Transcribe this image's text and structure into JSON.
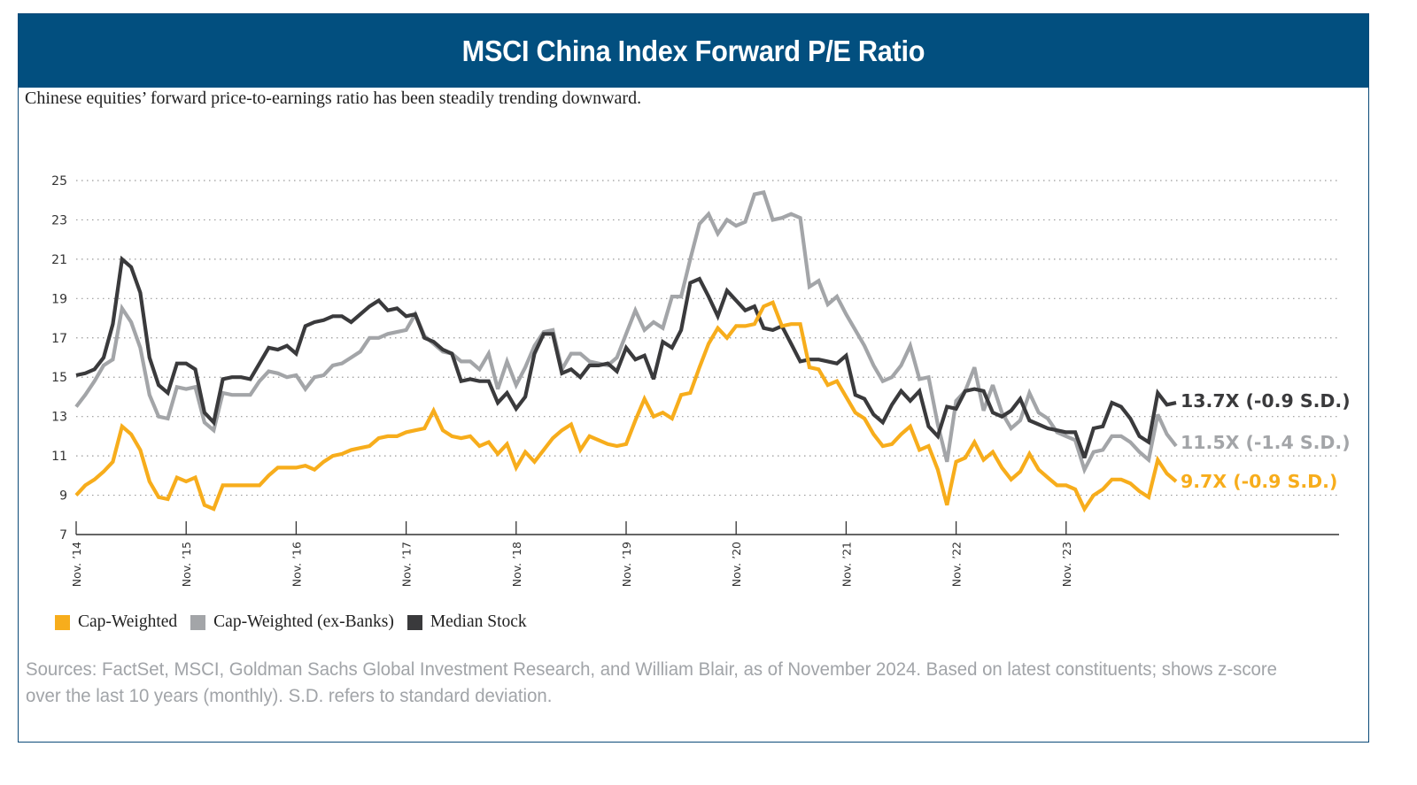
{
  "header": {
    "title": "MSCI China Index Forward P/E Ratio"
  },
  "subtitle": "Chinese equities’ forward price-to-earnings ratio has been steadily trending downward.",
  "footer": "Sources: FactSet, MSCI, Goldman Sachs Global Investment Research, and William Blair, as of November 2024. Based on latest constituents; shows z-score over the last 10 years (monthly). S.D. refers to standard deviation.",
  "colors": {
    "header_bg": "#024f7f",
    "cap_weighted": "#f7ad1c",
    "ex_banks": "#a3a5a8",
    "median": "#3a3a3c"
  },
  "chart_data": {
    "type": "line",
    "title": "MSCI China Index Forward P/E Ratio",
    "xlabel": "",
    "ylabel": "",
    "ylim": [
      7,
      25
    ],
    "yticks": [
      7,
      9,
      11,
      13,
      15,
      17,
      19,
      21,
      23,
      25
    ],
    "ytick_labels": [
      "7",
      "9",
      "11",
      "13",
      "15",
      "17",
      "19",
      "21",
      "23",
      "25"
    ],
    "grid": "horizontal dotted",
    "frequency": "monthly",
    "x_start": "Nov. 2014",
    "x_end": "Nov. 2024",
    "xticks": [
      0,
      12,
      24,
      36,
      48,
      60,
      72,
      84,
      96,
      108
    ],
    "xtick_labels": [
      "Nov. ’14",
      "Nov. ’15",
      "Nov. ’16",
      "Nov. ’17",
      "Nov. ’18",
      "Nov. ’19",
      "Nov. ’20",
      "Nov. ’21",
      "Nov. ’22",
      "Nov. ’23"
    ],
    "legend_position": "bottom-left",
    "series": [
      {
        "name": "Cap-Weighted",
        "color": "#f7ad1c",
        "end_label": "9.7X (-0.9 S.D.)",
        "values": [
          9.0,
          9.5,
          9.8,
          10.2,
          10.7,
          12.5,
          12.1,
          11.3,
          9.7,
          8.9,
          8.8,
          9.9,
          9.7,
          9.9,
          8.5,
          8.3,
          9.5,
          9.5,
          9.5,
          9.5,
          9.5,
          10.0,
          10.4,
          10.4,
          10.4,
          10.5,
          10.3,
          10.7,
          11.0,
          11.1,
          11.3,
          11.4,
          11.5,
          11.9,
          12.0,
          12.0,
          12.2,
          12.3,
          12.4,
          13.3,
          12.3,
          12.0,
          11.9,
          12.0,
          11.5,
          11.7,
          11.1,
          11.6,
          10.4,
          11.2,
          10.7,
          11.3,
          11.9,
          12.3,
          12.6,
          11.3,
          12.0,
          11.8,
          11.6,
          11.5,
          11.6,
          12.8,
          13.9,
          13.0,
          13.2,
          12.9,
          14.1,
          14.2,
          15.5,
          16.7,
          17.5,
          17.0,
          17.6,
          17.6,
          17.7,
          18.6,
          18.8,
          17.6,
          17.7,
          17.7,
          15.5,
          15.4,
          14.6,
          14.8,
          14.0,
          13.2,
          12.9,
          12.1,
          11.5,
          11.6,
          12.1,
          12.5,
          11.3,
          11.5,
          10.3,
          8.5,
          10.7,
          10.9,
          11.7,
          10.8,
          11.2,
          10.4,
          9.8,
          10.2,
          11.1,
          10.3,
          9.9,
          9.5,
          9.5,
          9.3,
          8.3,
          9.0,
          9.3,
          9.8,
          9.8,
          9.6,
          9.2,
          8.9,
          10.8,
          10.1,
          9.7
        ]
      },
      {
        "name": "Cap-Weighted (ex-Banks)",
        "color": "#a3a5a8",
        "end_label": "11.5X (-1.4 S.D.)",
        "values": [
          13.5,
          14.1,
          14.8,
          15.6,
          15.9,
          18.5,
          17.8,
          16.5,
          14.1,
          13.0,
          12.9,
          14.5,
          14.4,
          14.5,
          12.7,
          12.3,
          14.2,
          14.1,
          14.1,
          14.1,
          14.8,
          15.3,
          15.2,
          15.0,
          15.1,
          14.4,
          15.0,
          15.1,
          15.6,
          15.7,
          16.0,
          16.3,
          17.0,
          17.0,
          17.2,
          17.3,
          17.4,
          18.2,
          17.1,
          16.7,
          16.3,
          16.2,
          15.8,
          15.8,
          15.4,
          16.2,
          14.4,
          15.8,
          14.6,
          15.5,
          16.6,
          17.3,
          17.4,
          15.4,
          16.2,
          16.2,
          15.8,
          15.7,
          15.6,
          16.0,
          17.2,
          18.4,
          17.4,
          17.8,
          17.5,
          19.1,
          19.1,
          21.0,
          22.8,
          23.3,
          22.3,
          23.0,
          22.7,
          22.9,
          24.3,
          24.4,
          23.0,
          23.1,
          23.3,
          23.1,
          19.6,
          19.9,
          18.7,
          19.1,
          18.2,
          17.4,
          16.6,
          15.6,
          14.8,
          15.0,
          15.6,
          16.6,
          14.9,
          15.0,
          12.6,
          10.7,
          13.8,
          14.3,
          15.5,
          13.3,
          14.6,
          13.2,
          12.4,
          12.8,
          14.2,
          13.2,
          12.9,
          12.2,
          12.0,
          11.8,
          10.3,
          11.2,
          11.3,
          12.0,
          12.0,
          11.7,
          11.2,
          10.8,
          13.1,
          12.1,
          11.5
        ]
      },
      {
        "name": "Median Stock",
        "color": "#3a3a3c",
        "end_label": "13.7X (-0.9 S.D.)",
        "values": [
          15.1,
          15.2,
          15.4,
          16.0,
          17.7,
          21.0,
          20.6,
          19.3,
          16.0,
          14.6,
          14.2,
          15.7,
          15.7,
          15.4,
          13.2,
          12.7,
          14.9,
          15.0,
          15.0,
          14.9,
          15.7,
          16.5,
          16.4,
          16.6,
          16.2,
          17.6,
          17.8,
          17.9,
          18.1,
          18.1,
          17.8,
          18.2,
          18.6,
          18.9,
          18.4,
          18.5,
          18.1,
          18.2,
          17.0,
          16.8,
          16.4,
          16.2,
          14.8,
          14.9,
          14.8,
          14.8,
          13.7,
          14.2,
          13.4,
          14.0,
          16.2,
          17.2,
          17.2,
          15.2,
          15.4,
          15.0,
          15.6,
          15.6,
          15.7,
          15.3,
          16.5,
          15.9,
          16.1,
          14.9,
          16.8,
          16.5,
          17.4,
          19.8,
          20.0,
          19.1,
          18.1,
          19.4,
          18.9,
          18.4,
          18.6,
          17.5,
          17.4,
          17.6,
          16.7,
          15.8,
          15.9,
          15.9,
          15.8,
          15.7,
          16.1,
          14.1,
          13.9,
          13.1,
          12.7,
          13.6,
          14.3,
          13.8,
          14.3,
          12.5,
          12.0,
          13.5,
          13.4,
          14.3,
          14.4,
          14.3,
          13.2,
          13.0,
          13.3,
          13.9,
          12.8,
          12.6,
          12.4,
          12.3,
          12.2,
          12.2,
          10.9,
          12.4,
          12.5,
          13.7,
          13.5,
          12.9,
          12.0,
          11.7,
          14.2,
          13.6,
          13.7
        ]
      }
    ]
  }
}
